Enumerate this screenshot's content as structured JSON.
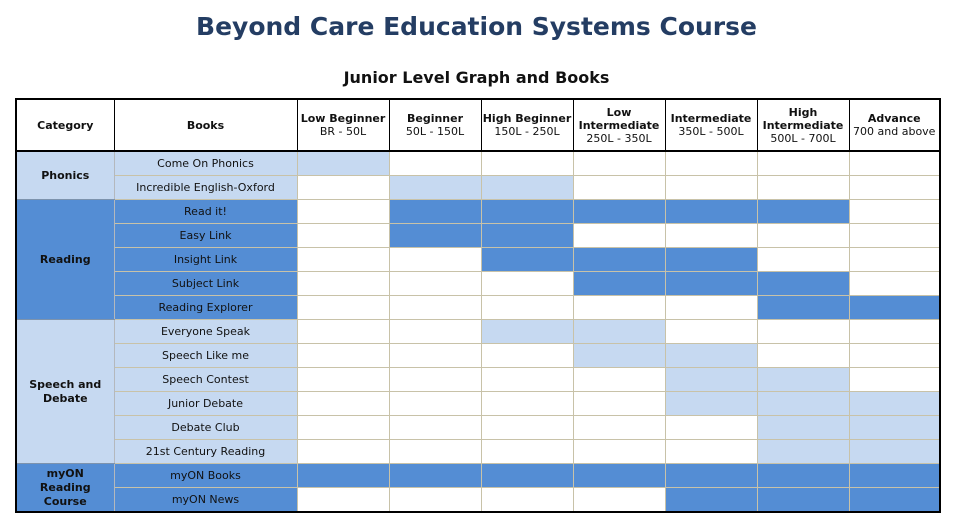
{
  "title": "Beyond Care Education Systems Course",
  "subtitle": "Junior Level Graph and Books",
  "headers": {
    "category": "Category",
    "books": "Books",
    "levels": [
      {
        "name": "Low Beginner",
        "range": "BR - 50L"
      },
      {
        "name": "Beginner",
        "range": "50L - 150L"
      },
      {
        "name": "High Beginner",
        "range": "150L - 250L"
      },
      {
        "name": "Low Intermediate",
        "range": "250L - 350L"
      },
      {
        "name": "Intermediate",
        "range": "350L - 500L"
      },
      {
        "name": "High Intermediate",
        "range": "500L - 700L"
      },
      {
        "name": "Advance",
        "range": "700 and above"
      }
    ]
  },
  "categories": [
    {
      "name": "Phonics",
      "shade": "light",
      "books": [
        {
          "name": "Come On Phonics",
          "levels": [
            1,
            0,
            0,
            0,
            0,
            0,
            0
          ]
        },
        {
          "name": "Incredible English-Oxford",
          "levels": [
            0,
            1,
            1,
            0,
            0,
            0,
            0
          ]
        }
      ]
    },
    {
      "name": "Reading",
      "shade": "dark",
      "books": [
        {
          "name": "Read it!",
          "levels": [
            0,
            1,
            1,
            1,
            1,
            1,
            0
          ]
        },
        {
          "name": "Easy Link",
          "levels": [
            0,
            1,
            1,
            0,
            0,
            0,
            0
          ]
        },
        {
          "name": "Insight Link",
          "levels": [
            0,
            0,
            1,
            1,
            1,
            0,
            0
          ]
        },
        {
          "name": "Subject Link",
          "levels": [
            0,
            0,
            0,
            1,
            1,
            1,
            0
          ]
        },
        {
          "name": "Reading Explorer",
          "levels": [
            0,
            0,
            0,
            0,
            0,
            1,
            1
          ]
        }
      ]
    },
    {
      "name": "Speech and Debate",
      "shade": "light",
      "books": [
        {
          "name": "Everyone Speak",
          "levels": [
            0,
            0,
            1,
            1,
            0,
            0,
            0
          ]
        },
        {
          "name": "Speech Like me",
          "levels": [
            0,
            0,
            0,
            1,
            1,
            0,
            0
          ]
        },
        {
          "name": "Speech Contest",
          "levels": [
            0,
            0,
            0,
            0,
            1,
            1,
            0
          ]
        },
        {
          "name": "Junior Debate",
          "levels": [
            0,
            0,
            0,
            0,
            1,
            1,
            1
          ]
        },
        {
          "name": "Debate Club",
          "levels": [
            0,
            0,
            0,
            0,
            0,
            1,
            1
          ]
        },
        {
          "name": "21st Century Reading",
          "levels": [
            0,
            0,
            0,
            0,
            0,
            1,
            1
          ]
        }
      ]
    },
    {
      "name": "myON Reading Course",
      "shade": "dark",
      "books": [
        {
          "name": "myON Books",
          "levels": [
            1,
            1,
            1,
            1,
            1,
            1,
            1
          ]
        },
        {
          "name": "myON News",
          "levels": [
            0,
            0,
            0,
            0,
            1,
            1,
            1
          ]
        }
      ]
    }
  ],
  "colors": {
    "light": "#c6d9f1",
    "dark": "#548dd4",
    "title": "#243d63"
  }
}
